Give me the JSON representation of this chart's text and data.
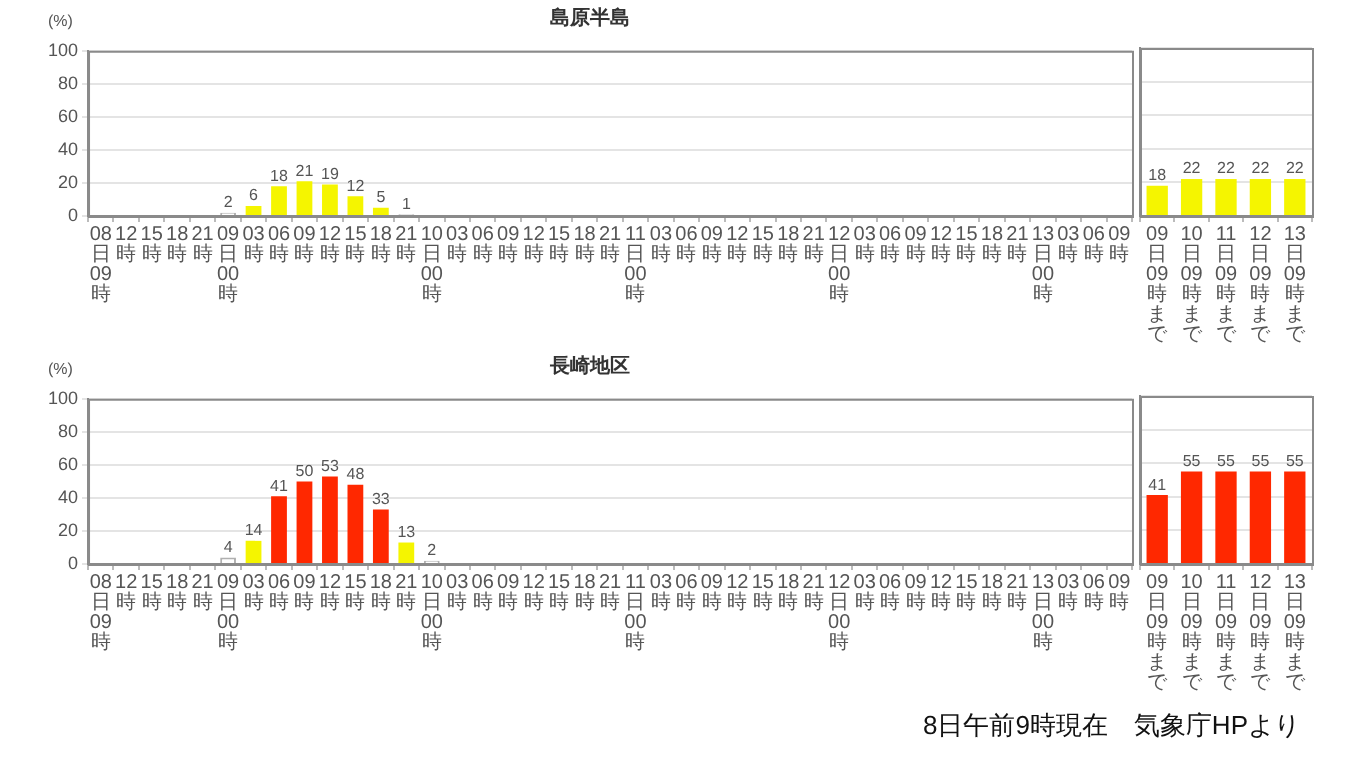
{
  "chart_data": [
    {
      "type": "bar",
      "title": "島原半島",
      "ylabel": "(%)",
      "categories": [
        "08日09時",
        "12時",
        "15時",
        "18時",
        "21時",
        "09日00時",
        "03時",
        "06時",
        "09時",
        "12時",
        "15時",
        "18時",
        "21時",
        "10日00時",
        "03時",
        "06時",
        "09時",
        "12時",
        "15時",
        "18時",
        "21時",
        "11日00時",
        "03時",
        "06時",
        "09時",
        "12時",
        "15時",
        "18時",
        "21時",
        "12日00時",
        "03時",
        "06時",
        "09時",
        "12時",
        "15時",
        "18時",
        "21時",
        "13日00時",
        "03時",
        "06時",
        "09時"
      ],
      "values": [
        null,
        null,
        null,
        null,
        null,
        2,
        6,
        18,
        21,
        19,
        12,
        5,
        1,
        null,
        null,
        null,
        null,
        null,
        null,
        null,
        null,
        null,
        null,
        null,
        null,
        null,
        null,
        null,
        null,
        null,
        null,
        null,
        null,
        null,
        null,
        null,
        null,
        null,
        null,
        null,
        null
      ],
      "colors": [
        null,
        null,
        null,
        null,
        null,
        "#ffffff",
        "#f5f500",
        "#f5f500",
        "#f5f500",
        "#f5f500",
        "#f5f500",
        "#f5f500",
        "#ffffff",
        null,
        null,
        null,
        null,
        null,
        null,
        null,
        null,
        null,
        null,
        null,
        null,
        null,
        null,
        null,
        null,
        null,
        null,
        null,
        null,
        null,
        null,
        null,
        null,
        null,
        null,
        null,
        null
      ],
      "ylim": [
        0,
        100
      ],
      "yticks": [
        0,
        20,
        40,
        60,
        80,
        100
      ],
      "grid": "y",
      "data_labels": true
    },
    {
      "type": "bar",
      "categories": [
        "09日09時まで",
        "10日09時まで",
        "11日09時まで",
        "12日09時まで",
        "13日09時まで"
      ],
      "values": [
        18,
        22,
        22,
        22,
        22
      ],
      "colors": [
        "#f5f500",
        "#f5f500",
        "#f5f500",
        "#f5f500",
        "#f5f500"
      ],
      "ylim": [
        0,
        100
      ],
      "yticks": [
        0,
        20,
        40,
        60,
        80,
        100
      ],
      "grid": "y",
      "data_labels": true,
      "tick_labels": "x"
    },
    {
      "type": "bar",
      "title": "長崎地区",
      "ylabel": "(%)",
      "categories": [
        "08日09時",
        "12時",
        "15時",
        "18時",
        "21時",
        "09日00時",
        "03時",
        "06時",
        "09時",
        "12時",
        "15時",
        "18時",
        "21時",
        "10日00時",
        "03時",
        "06時",
        "09時",
        "12時",
        "15時",
        "18時",
        "21時",
        "11日00時",
        "03時",
        "06時",
        "09時",
        "12時",
        "15時",
        "18時",
        "21時",
        "12日00時",
        "03時",
        "06時",
        "09時",
        "12時",
        "15時",
        "18時",
        "21時",
        "13日00時",
        "03時",
        "06時",
        "09時"
      ],
      "values": [
        null,
        null,
        null,
        null,
        null,
        4,
        14,
        41,
        50,
        53,
        48,
        33,
        13,
        2,
        null,
        null,
        null,
        null,
        null,
        null,
        null,
        null,
        null,
        null,
        null,
        null,
        null,
        null,
        null,
        null,
        null,
        null,
        null,
        null,
        null,
        null,
        null,
        null,
        null,
        null,
        null
      ],
      "colors": [
        null,
        null,
        null,
        null,
        null,
        "#ffffff",
        "#f5f500",
        "#ff2800",
        "#ff2800",
        "#ff2800",
        "#ff2800",
        "#ff2800",
        "#f5f500",
        "#ffffff",
        null,
        null,
        null,
        null,
        null,
        null,
        null,
        null,
        null,
        null,
        null,
        null,
        null,
        null,
        null,
        null,
        null,
        null,
        null,
        null,
        null,
        null,
        null,
        null,
        null,
        null,
        null
      ],
      "ylim": [
        0,
        100
      ],
      "yticks": [
        0,
        20,
        40,
        60,
        80,
        100
      ],
      "grid": "y",
      "data_labels": true
    },
    {
      "type": "bar",
      "categories": [
        "09日09時まで",
        "10日09時まで",
        "11日09時まで",
        "12日09時まで",
        "13日09時まで"
      ],
      "values": [
        41,
        55,
        55,
        55,
        55
      ],
      "colors": [
        "#ff2800",
        "#ff2800",
        "#ff2800",
        "#ff2800",
        "#ff2800"
      ],
      "ylim": [
        0,
        100
      ],
      "yticks": [
        0,
        20,
        40,
        60,
        80,
        100
      ],
      "grid": "y",
      "data_labels": true,
      "tick_labels": "x",
      "annotations": [
        "8日午前9時現在　気象庁HPより"
      ]
    }
  ]
}
